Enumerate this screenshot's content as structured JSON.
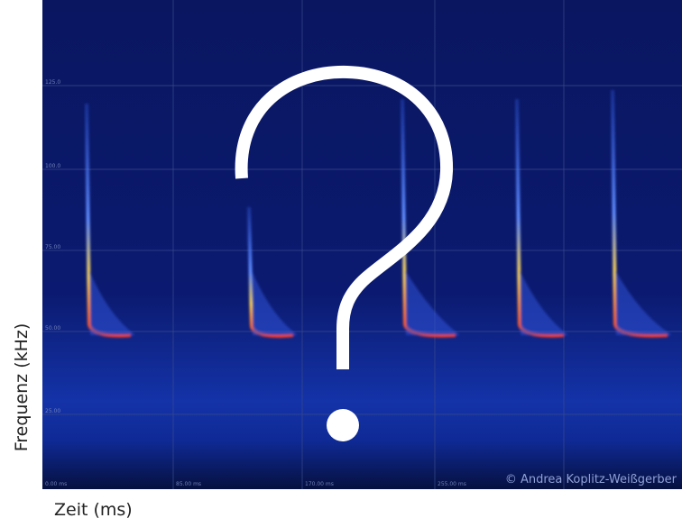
{
  "axis_labels": {
    "y": "Frequenz (kHz)",
    "x": "Zeit (ms)"
  },
  "frequency_ticks": [
    "125.0",
    "100.0",
    "75.00",
    "50.00",
    "25.00"
  ],
  "time_ticks": [
    "0.00 ms",
    "85.00 ms",
    "170.00 ms",
    "255.00 ms"
  ],
  "copyright": "© Andrea Koplitz-Weißgerber"
}
